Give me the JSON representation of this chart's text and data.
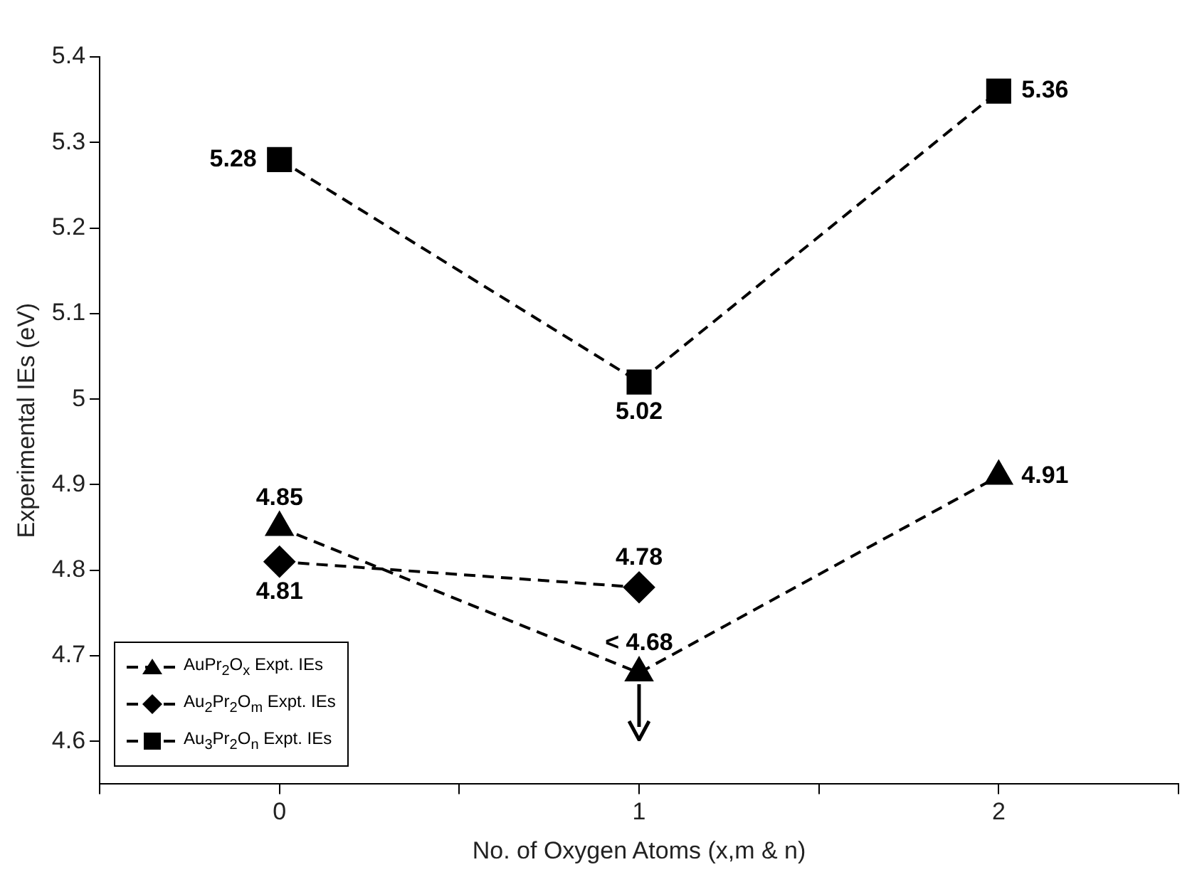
{
  "chart_data": {
    "type": "line",
    "xlabel": "No. of Oxygen Atoms (x,m & n)",
    "ylabel": "Experimental IEs (eV)",
    "xlim": [
      -0.5,
      2.5
    ],
    "xticks": [
      {
        "value": -0.5,
        "label": null
      },
      0,
      {
        "value": 0.5,
        "label": null
      },
      1,
      {
        "value": 1.5,
        "label": null
      },
      2,
      {
        "value": 2.5,
        "label": null
      }
    ],
    "ylim": [
      4.55,
      5.4
    ],
    "yticks": [
      4.6,
      4.7,
      4.8,
      4.9,
      5,
      5.1,
      5.2,
      5.3,
      5.4
    ],
    "grid": false,
    "legend": "bottom left",
    "line_style": "dashed",
    "series": [
      {
        "name": "AuPr$_{2}$O$_{x}$ Expt. IEs",
        "color": "#000000",
        "marker": "triangle",
        "x": [
          0,
          1,
          2
        ],
        "values": [
          4.85,
          4.68,
          4.91
        ],
        "value_labels": [
          "4.85",
          "< 4.68",
          "4.91"
        ]
      },
      {
        "name": "Au$_{2}$Pr$_{2}$O$_{m}$ Expt. IEs",
        "color": "#000000",
        "marker": "diamond",
        "x": [
          0,
          1
        ],
        "values": [
          4.81,
          4.78
        ],
        "value_labels": [
          "4.81",
          "4.78"
        ]
      },
      {
        "name": "Au$_{3}$Pr$_{2}$O$_{n}$ Expt. IEs",
        "color": "#000000",
        "marker": "square",
        "x": [
          0,
          1,
          2
        ],
        "values": [
          5.28,
          5.02,
          5.36
        ],
        "value_labels": [
          "5.28",
          "5.02",
          "5.36"
        ]
      }
    ]
  }
}
